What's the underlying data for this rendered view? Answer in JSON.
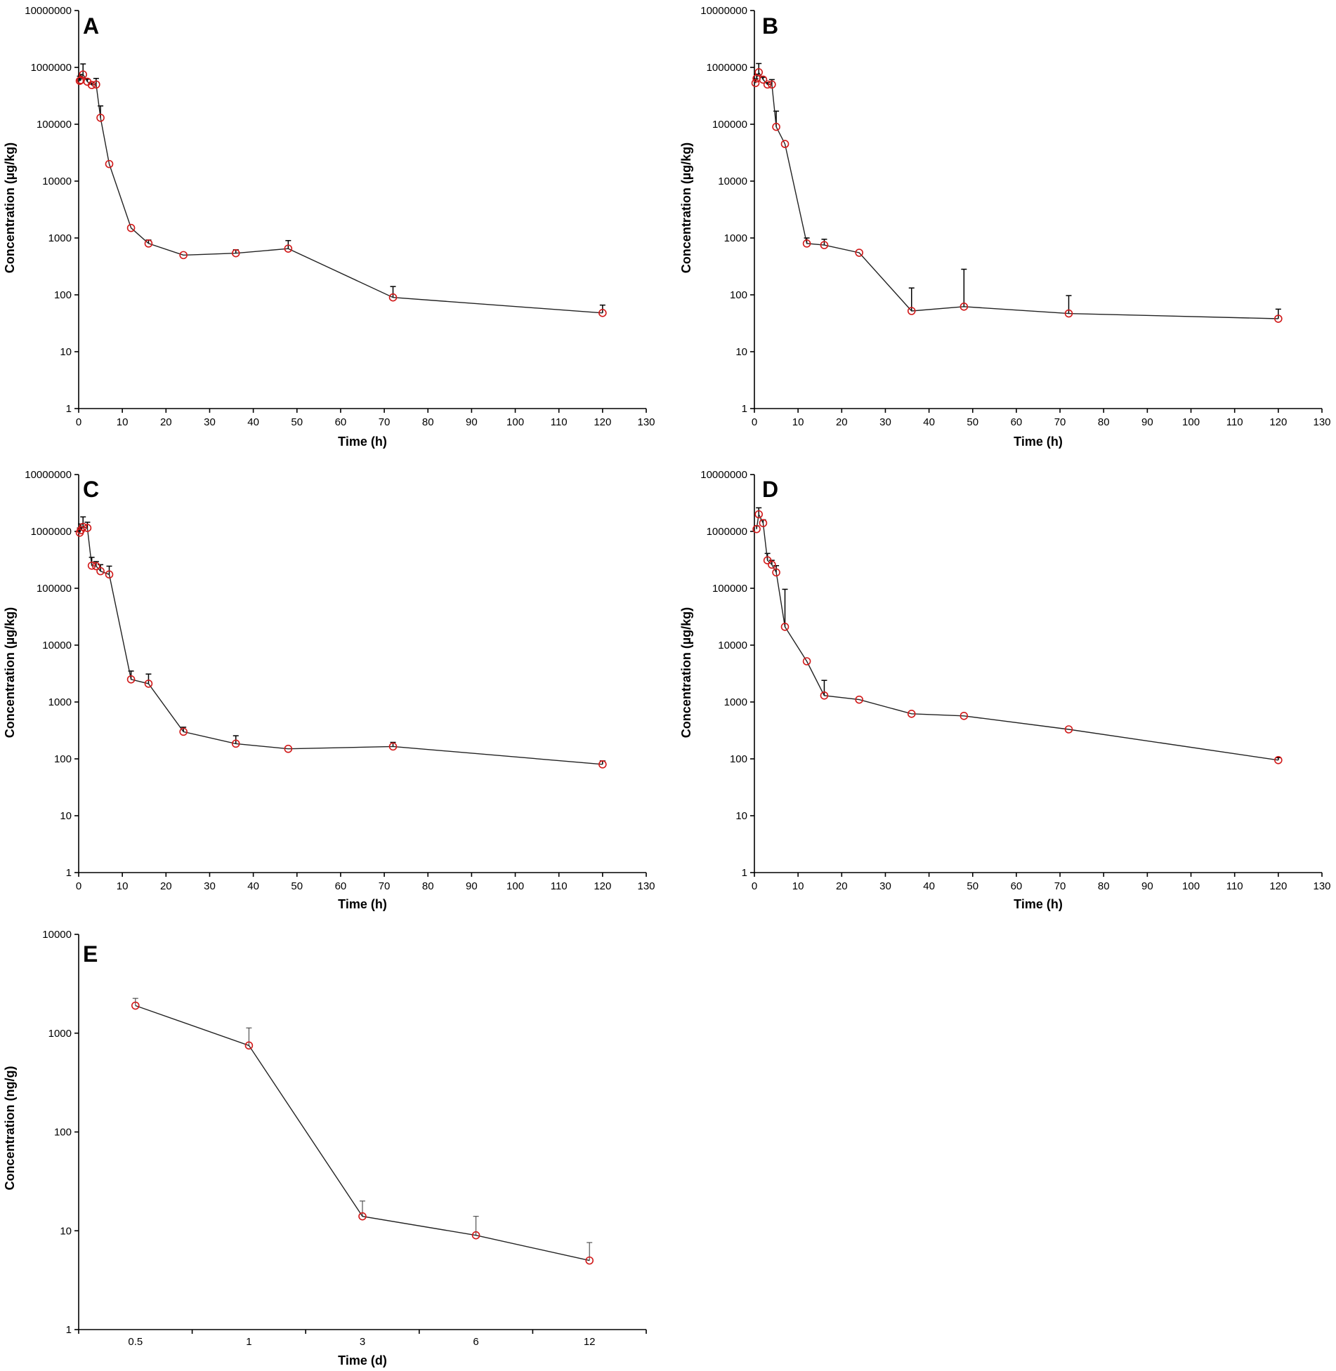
{
  "figure": {
    "panels": [
      {
        "id": "A",
        "letter": "A",
        "xlabel": "Time (h)",
        "ylabel": "Concentration (µg/kg)"
      },
      {
        "id": "B",
        "letter": "B",
        "xlabel": "Time (h)",
        "ylabel": "Concentration (µg/kg)"
      },
      {
        "id": "C",
        "letter": "C",
        "xlabel": "Time (h)",
        "ylabel": "Concentration (µg/kg)"
      },
      {
        "id": "D",
        "letter": "D",
        "xlabel": "Time (h)",
        "ylabel": "Concentration (µg/kg)"
      },
      {
        "id": "E",
        "letter": "E",
        "xlabel": "Time (d)",
        "ylabel": "Concentration (ng/g)"
      }
    ]
  },
  "colors": {
    "marker": "#d11a1a",
    "line": "#222222",
    "errorbar": "#000000",
    "axis": "#000000"
  },
  "chart_data": [
    {
      "panel": "A",
      "type": "line",
      "yscale": "log",
      "xlabel": "Time (h)",
      "ylabel": "Concentration (µg/kg)",
      "xlim": [
        0,
        130
      ],
      "ylim": [
        1,
        10000000
      ],
      "xticks": [
        "0",
        "10",
        "20",
        "30",
        "40",
        "50",
        "60",
        "70",
        "80",
        "90",
        "100",
        "110",
        "120",
        "130"
      ],
      "yticks": [
        "1",
        "10",
        "100",
        "1000",
        "10000",
        "100000",
        "1000000",
        "10000000"
      ],
      "x": [
        0.25,
        0.5,
        1,
        2,
        3,
        4,
        5,
        7,
        12,
        16,
        24,
        36,
        48,
        72,
        120
      ],
      "y": [
        580000,
        600000,
        750000,
        560000,
        490000,
        500000,
        130000,
        20000,
        1500,
        800,
        500,
        540,
        650,
        90,
        48
      ],
      "err": [
        120000,
        150000,
        400000,
        60000,
        40000,
        140000,
        80000,
        0,
        0,
        120,
        0,
        80,
        250,
        50,
        18
      ]
    },
    {
      "panel": "B",
      "type": "line",
      "yscale": "log",
      "xlabel": "Time (h)",
      "ylabel": "Concentration (µg/kg)",
      "xlim": [
        0,
        130
      ],
      "ylim": [
        1,
        10000000
      ],
      "xticks": [
        "0",
        "10",
        "20",
        "30",
        "40",
        "50",
        "60",
        "70",
        "80",
        "90",
        "100",
        "110",
        "120",
        "130"
      ],
      "yticks": [
        "1",
        "10",
        "100",
        "1000",
        "10000",
        "100000",
        "1000000",
        "10000000"
      ],
      "x": [
        0.25,
        0.5,
        1,
        2,
        3,
        4,
        5,
        7,
        12,
        16,
        24,
        36,
        48,
        72,
        120
      ],
      "y": [
        530000,
        640000,
        820000,
        610000,
        500000,
        500000,
        90000,
        45000,
        800,
        750,
        550,
        52,
        62,
        47,
        38
      ],
      "err": [
        100000,
        120000,
        350000,
        60000,
        40000,
        110000,
        80000,
        0,
        200,
        200,
        0,
        80,
        220,
        50,
        18
      ]
    },
    {
      "panel": "C",
      "type": "line",
      "yscale": "log",
      "xlabel": "Time (h)",
      "ylabel": "Concentration (µg/kg)",
      "xlim": [
        0,
        130
      ],
      "ylim": [
        1,
        10000000
      ],
      "xticks": [
        "0",
        "10",
        "20",
        "30",
        "40",
        "50",
        "60",
        "70",
        "80",
        "90",
        "100",
        "110",
        "120",
        "130"
      ],
      "yticks": [
        "1",
        "10",
        "100",
        "1000",
        "10000",
        "100000",
        "1000000",
        "10000000"
      ],
      "x": [
        0.25,
        0.5,
        1,
        2,
        3,
        4,
        5,
        7,
        12,
        16,
        24,
        36,
        48,
        72,
        120
      ],
      "y": [
        950000,
        1050000,
        1200000,
        1150000,
        250000,
        245000,
        200000,
        175000,
        2500,
        2100,
        300,
        185,
        150,
        165,
        80
      ],
      "err": [
        200000,
        300000,
        600000,
        300000,
        100000,
        50000,
        60000,
        70000,
        1000,
        1000,
        60,
        70,
        0,
        30,
        12
      ]
    },
    {
      "panel": "D",
      "type": "line",
      "yscale": "log",
      "xlabel": "Time (h)",
      "ylabel": "Concentration (µg/kg)",
      "xlim": [
        0,
        130
      ],
      "ylim": [
        1,
        10000000
      ],
      "xticks": [
        "0",
        "10",
        "20",
        "30",
        "40",
        "50",
        "60",
        "70",
        "80",
        "90",
        "100",
        "110",
        "120",
        "130"
      ],
      "yticks": [
        "1",
        "10",
        "100",
        "1000",
        "10000",
        "100000",
        "1000000",
        "10000000"
      ],
      "x": [
        0.5,
        1,
        2,
        3,
        4,
        5,
        7,
        12,
        16,
        24,
        36,
        48,
        72,
        120
      ],
      "y": [
        1100000,
        2000000,
        1400000,
        310000,
        260000,
        190000,
        21000,
        5200,
        1300,
        1100,
        620,
        570,
        330,
        95
      ],
      "err": [
        150000,
        600000,
        200000,
        100000,
        50000,
        60000,
        75000,
        0,
        1100,
        0,
        0,
        0,
        0,
        10
      ]
    },
    {
      "panel": "E",
      "type": "line",
      "yscale": "log",
      "xlabel": "Time (d)",
      "ylabel": "Concentration (ng/g)",
      "ylim": [
        1,
        10000
      ],
      "categories": [
        "0.5",
        "1",
        "3",
        "6",
        "12"
      ],
      "yticks": [
        "1",
        "10",
        "100",
        "1000",
        "10000"
      ],
      "y": [
        1900,
        750,
        14,
        9,
        5
      ],
      "err": [
        350,
        380,
        6,
        5,
        2.6
      ]
    }
  ]
}
